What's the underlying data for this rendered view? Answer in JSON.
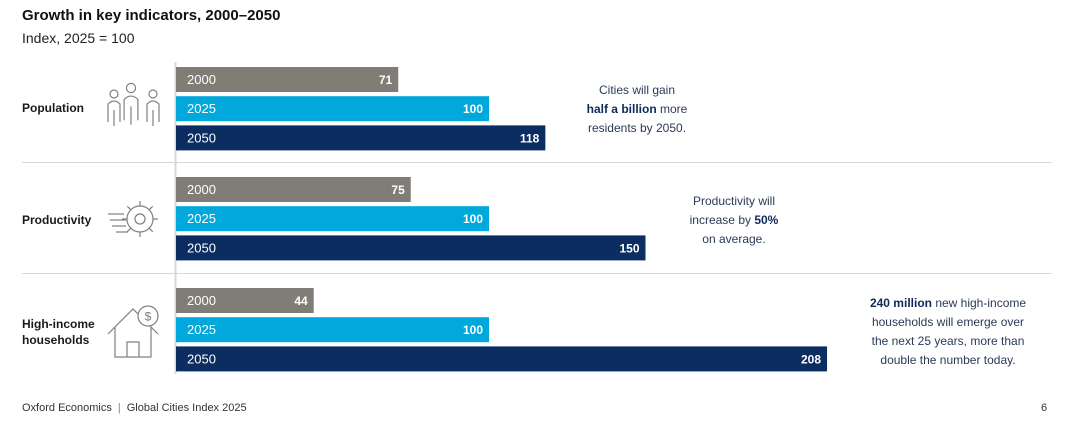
{
  "header": {
    "title": "Growth in key indicators, 2000–2050",
    "subtitle": "Index, 2025 = 100"
  },
  "colors": {
    "year_2000": "#807d77",
    "year_2025": "#00a8dc",
    "year_2050": "#0c2d62",
    "icon": "#7d8087",
    "divider": "#d8d8d8"
  },
  "icons": [
    "people-icon",
    "gear-icon",
    "house-dollar-icon"
  ],
  "chart_data": {
    "type": "bar",
    "orientation": "horizontal",
    "groups": [
      {
        "label": "Population",
        "bars": [
          {
            "year": "2000",
            "value": 71
          },
          {
            "year": "2025",
            "value": 100
          },
          {
            "year": "2050",
            "value": 118
          }
        ]
      },
      {
        "label": "Productivity",
        "bars": [
          {
            "year": "2000",
            "value": 75
          },
          {
            "year": "2025",
            "value": 100
          },
          {
            "year": "2050",
            "value": 150
          }
        ]
      },
      {
        "label": "High-income households",
        "bars": [
          {
            "year": "2000",
            "value": 44
          },
          {
            "year": "2025",
            "value": 100
          },
          {
            "year": "2050",
            "value": 208
          }
        ]
      }
    ],
    "series": [
      {
        "name": "2000"
      },
      {
        "name": "2025"
      },
      {
        "name": "2050"
      }
    ]
  },
  "notes": {
    "population": {
      "l1": "Cities will gain",
      "l2_bold": "half a billion",
      "l2_rest": " more",
      "l3": "residents by 2050."
    },
    "productivity": {
      "l1": "Productivity will",
      "l2_pre": "increase by ",
      "l2_bold": "50%",
      "l3": "on average."
    },
    "households": {
      "l1_bold": "240 million",
      "l1_rest": " new high-income",
      "l2": "households will emerge over",
      "l3": "the next 25 years, more than",
      "l4": "double the number today."
    }
  },
  "footer": {
    "source": "Oxford Economics",
    "separator": "|",
    "publication": "Global Cities Index 2025",
    "page_number": "6"
  }
}
